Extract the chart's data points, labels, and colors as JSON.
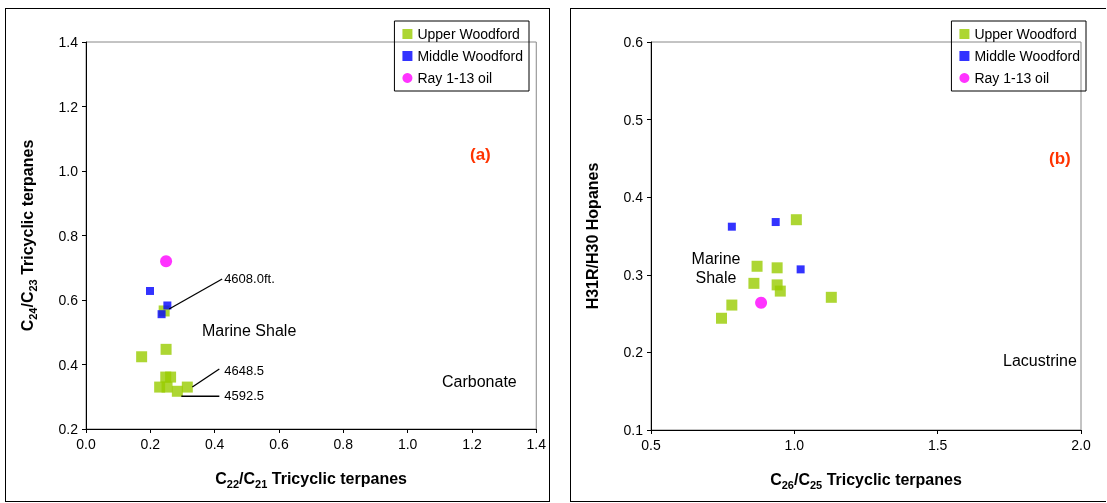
{
  "chart_data": [
    {
      "type": "scatter",
      "xlabel": "C$_{22}$/C$_{21}$ Tricyclic terpanes",
      "ylabel": "C$_{24}$/C$_{23}$ Tricyclic terpanes",
      "xlim": [
        0,
        1.4
      ],
      "xticks": [
        {
          "value": 0,
          "label": "0.0"
        },
        0.2,
        0.4,
        0.6,
        0.8,
        {
          "value": 1,
          "label": "1.0"
        },
        1.2,
        1.4
      ],
      "ylim": [
        0.2,
        1.4
      ],
      "yticks": [
        0.2,
        0.4,
        0.6,
        0.8,
        {
          "value": 1,
          "label": "1.0"
        },
        1.2,
        1.4
      ],
      "grid": false,
      "legend": "top right",
      "series": [
        {
          "name": "Upper Woodford",
          "color": "#99cc00",
          "marker": "square",
          "x": [
            0.243,
            0.173,
            0.249,
            0.248,
            0.263,
            0.229,
            0.252,
            0.284,
            0.315
          ],
          "values": [
            0.566,
            0.424,
            0.447,
            0.361,
            0.361,
            0.33,
            0.33,
            0.317,
            0.33
          ]
        },
        {
          "name": "Middle Woodford",
          "color": "#0000ff",
          "marker": "square",
          "x": [
            0.199,
            0.253,
            0.235
          ],
          "values": [
            0.628,
            0.583,
            0.556
          ]
        },
        {
          "name": "Ray 1-13 oil",
          "color": "#ff00ff",
          "marker": "circle",
          "x": [
            0.249
          ],
          "values": [
            0.72
          ]
        }
      ],
      "annotations": [
        {
          "text": "4608.0ft.",
          "x": 0.243,
          "y": 0.566
        },
        {
          "text": "4648.5",
          "x": 0.315,
          "y": 0.33
        },
        {
          "text": "4592.5",
          "x": 0.284,
          "y": 0.317
        },
        "Marine Shale",
        "Carbonate",
        "(a)"
      ]
    },
    {
      "type": "scatter",
      "xlabel": "C$_{26}$/C$_{25}$ Tricyclic terpanes",
      "ylabel": "H31R/H30 Hopanes",
      "xlim": [
        0.5,
        2.0
      ],
      "xticks": [
        0.5,
        {
          "value": 1,
          "label": "1.0"
        },
        1.5,
        {
          "value": 2,
          "label": "2.0"
        }
      ],
      "ylim": [
        0.1,
        0.6
      ],
      "yticks": [
        0.1,
        0.2,
        0.3,
        0.4,
        0.5,
        0.6
      ],
      "grid": false,
      "legend": "top right",
      "series": [
        {
          "name": "Upper Woodford",
          "color": "#99cc00",
          "marker": "square",
          "x": [
            1.007,
            0.87,
            0.94,
            0.859,
            0.94,
            0.951,
            1.129,
            0.782,
            0.746
          ],
          "values": [
            0.371,
            0.311,
            0.309,
            0.289,
            0.287,
            0.279,
            0.271,
            0.261,
            0.244
          ]
        },
        {
          "name": "Middle Woodford",
          "color": "#0000ff",
          "marker": "square",
          "x": [
            0.782,
            0.935,
            1.022
          ],
          "values": [
            0.362,
            0.368,
            0.307
          ]
        },
        {
          "name": "Ray 1-13 oil",
          "color": "#ff00ff",
          "marker": "circle",
          "x": [
            0.884
          ],
          "values": [
            0.264
          ]
        }
      ],
      "annotations": [
        "Marine Shale",
        "(b)",
        "Lacustrine"
      ]
    }
  ]
}
